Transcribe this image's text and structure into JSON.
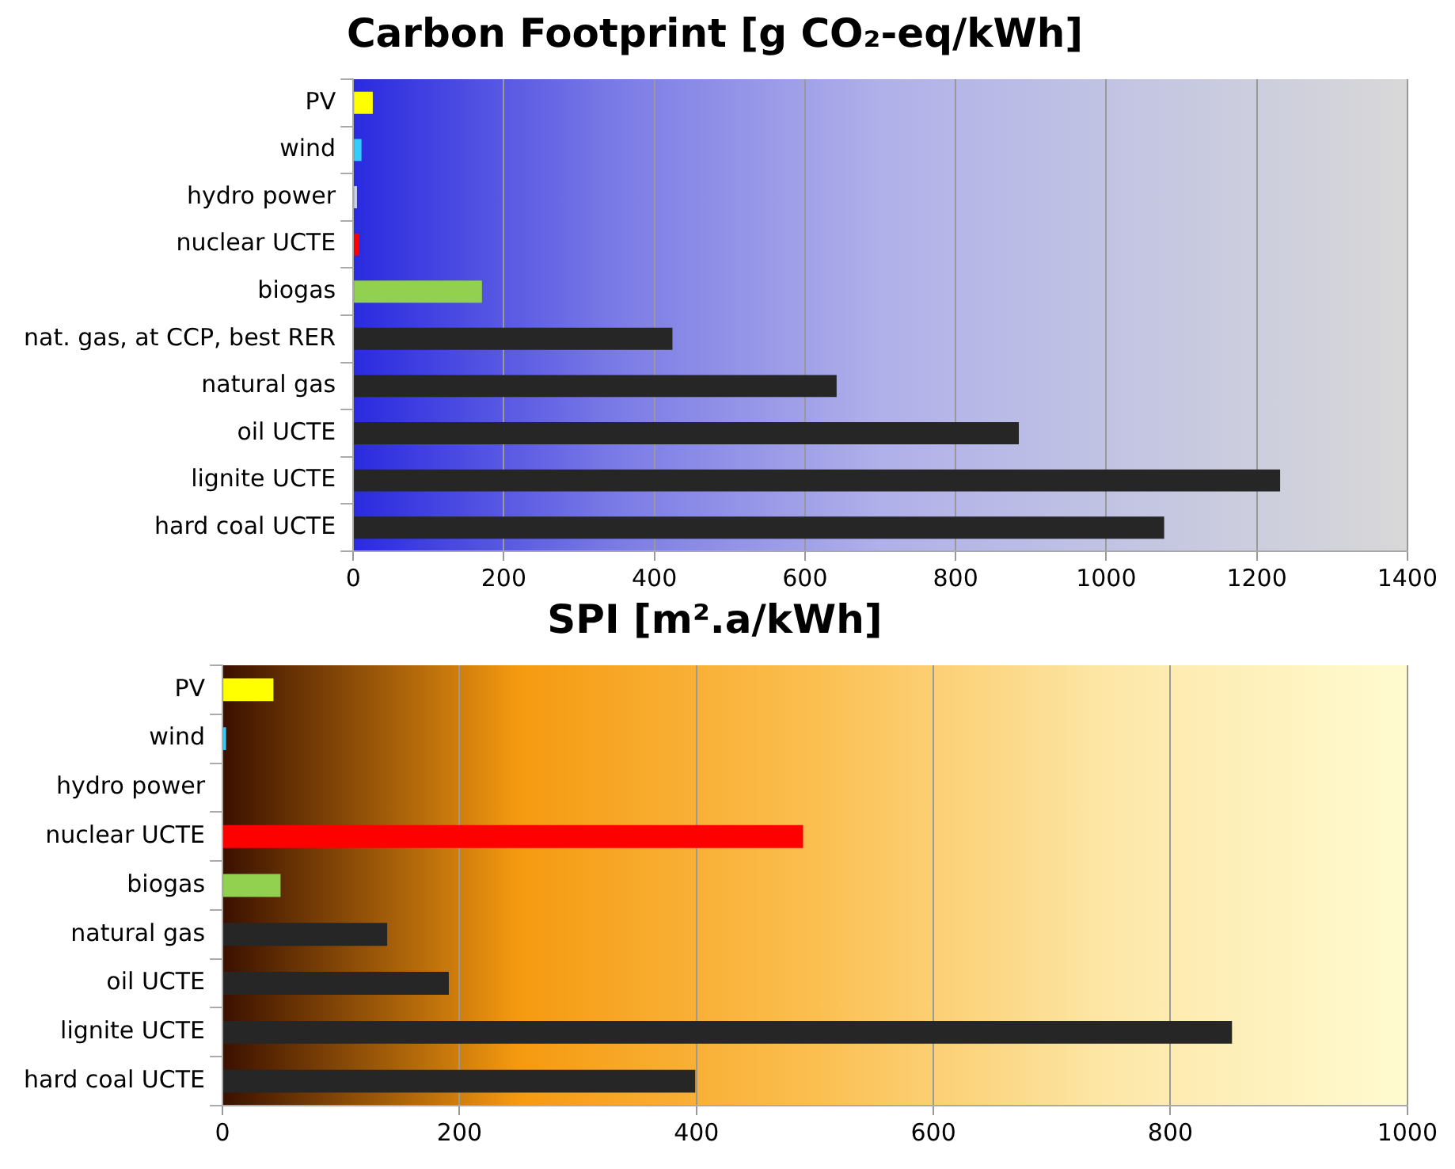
{
  "chart_data": [
    {
      "type": "bar",
      "orientation": "horizontal",
      "title": "Carbon Footprint [g CO₂-eq/kWh]",
      "categories": [
        "PV",
        "wind",
        "hydro power",
        "nuclear UCTE",
        "biogas",
        "nat. gas, at CCP, best RER",
        "natural gas",
        "oil UCTE",
        "lignite UCTE",
        "hard coal UCTE"
      ],
      "values": [
        26,
        11,
        5,
        8,
        171,
        424,
        642,
        884,
        1231,
        1077
      ],
      "colors": [
        "#ffff00",
        "#33ccff",
        "#c8d2f0",
        "#ff0000",
        "#92d050",
        "#262626",
        "#262626",
        "#262626",
        "#262626",
        "#262626"
      ],
      "xlim": [
        0,
        1400
      ],
      "xticks": [
        0,
        200,
        400,
        600,
        800,
        1000,
        1200,
        1400
      ],
      "grid": "x"
    },
    {
      "type": "bar",
      "orientation": "horizontal",
      "title": "SPI [m².a/kWh]",
      "categories": [
        "PV",
        "wind",
        "hydro power",
        "nuclear UCTE",
        "biogas",
        "natural gas",
        "oil UCTE",
        "lignite UCTE",
        "hard coal UCTE"
      ],
      "values": [
        43,
        3,
        0,
        490,
        49,
        139,
        191,
        852,
        399
      ],
      "colors": [
        "#ffff00",
        "#33ccff",
        "#c8d2f0",
        "#ff0000",
        "#92d050",
        "#262626",
        "#262626",
        "#262626",
        "#262626"
      ],
      "xlim": [
        0,
        1000
      ],
      "xticks": [
        0,
        200,
        400,
        600,
        800,
        1000
      ],
      "grid": "x"
    }
  ]
}
